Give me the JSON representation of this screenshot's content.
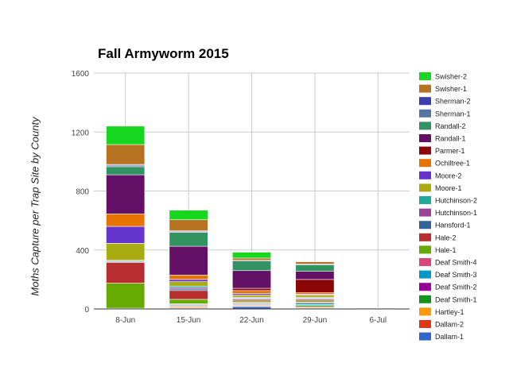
{
  "chart_data": {
    "type": "bar",
    "stacked": true,
    "title": "Fall Armyworm 2015",
    "xlabel": "",
    "ylabel": "Moths Capture per Trap Site by County",
    "categories": [
      "8-Jun",
      "15-Jun",
      "22-Jun",
      "29-Jun",
      "6-Jul"
    ],
    "ylim": [
      0,
      1600
    ],
    "yticks": [
      0,
      400,
      800,
      1200,
      1600
    ],
    "grid": true,
    "legend_position": "right",
    "series": [
      {
        "name": "Dallam-1",
        "color": "#3366cc",
        "values": [
          0,
          5,
          15,
          5,
          2
        ]
      },
      {
        "name": "Dallam-2",
        "color": "#dc3912",
        "values": [
          0,
          5,
          5,
          5,
          1
        ]
      },
      {
        "name": "Hartley-1",
        "color": "#ff9900",
        "values": [
          0,
          5,
          5,
          5,
          1
        ]
      },
      {
        "name": "Deaf Smith-1",
        "color": "#109618",
        "values": [
          5,
          5,
          5,
          10,
          1
        ]
      },
      {
        "name": "Deaf Smith-2",
        "color": "#990099",
        "values": [
          0,
          5,
          5,
          5,
          1
        ]
      },
      {
        "name": "Deaf Smith-3",
        "color": "#0099c6",
        "values": [
          0,
          5,
          5,
          10,
          1
        ]
      },
      {
        "name": "Deaf Smith-4",
        "color": "#dd4477",
        "values": [
          0,
          5,
          5,
          5,
          1
        ]
      },
      {
        "name": "Hale-1",
        "color": "#66aa00",
        "values": [
          170,
          30,
          10,
          10,
          1
        ]
      },
      {
        "name": "Hale-2",
        "color": "#b82e2e",
        "values": [
          140,
          60,
          10,
          10,
          1
        ]
      },
      {
        "name": "Hansford-1",
        "color": "#316395",
        "values": [
          5,
          10,
          5,
          5,
          0
        ]
      },
      {
        "name": "Hutchinson-1",
        "color": "#994499",
        "values": [
          5,
          10,
          5,
          5,
          0
        ]
      },
      {
        "name": "Hutchinson-2",
        "color": "#22aa99",
        "values": [
          5,
          10,
          5,
          5,
          0
        ]
      },
      {
        "name": "Moore-1",
        "color": "#aaaa11",
        "values": [
          115,
          30,
          15,
          15,
          0
        ]
      },
      {
        "name": "Moore-2",
        "color": "#6633cc",
        "values": [
          115,
          15,
          10,
          5,
          0
        ]
      },
      {
        "name": "Ochiltree-1",
        "color": "#e67300",
        "values": [
          85,
          30,
          20,
          10,
          0
        ]
      },
      {
        "name": "Parmer-1",
        "color": "#8b0707",
        "values": [
          0,
          0,
          15,
          90,
          0
        ]
      },
      {
        "name": "Randall-1",
        "color": "#651067",
        "values": [
          265,
          195,
          120,
          55,
          0
        ]
      },
      {
        "name": "Randall-2",
        "color": "#329262",
        "values": [
          55,
          95,
          65,
          45,
          0
        ]
      },
      {
        "name": "Sherman-1",
        "color": "#5574a6",
        "values": [
          10,
          5,
          5,
          5,
          0
        ]
      },
      {
        "name": "Sherman-2",
        "color": "#3b3eac",
        "values": [
          5,
          5,
          0,
          0,
          0
        ]
      },
      {
        "name": "Swisher-1",
        "color": "#b77322",
        "values": [
          135,
          75,
          15,
          15,
          0
        ]
      },
      {
        "name": "Swisher-2",
        "color": "#16d620",
        "values": [
          125,
          65,
          40,
          0,
          0
        ]
      }
    ]
  }
}
